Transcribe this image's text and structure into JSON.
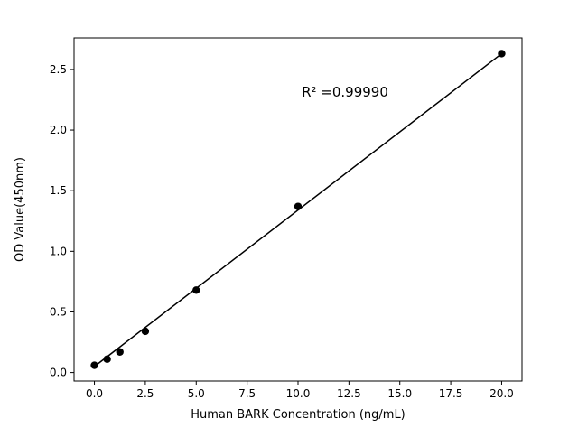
{
  "chart_data": {
    "type": "scatter",
    "title": "",
    "xlabel": "Human BARK Concentration (ng/mL)",
    "ylabel": "OD Value(450nm)",
    "annotation": "R² =0.99990",
    "x": [
      0,
      0.625,
      1.25,
      2.5,
      5,
      10,
      20
    ],
    "y": [
      0.06,
      0.11,
      0.17,
      0.34,
      0.68,
      1.37,
      2.63
    ],
    "fit_line": {
      "x": [
        0,
        20
      ],
      "y": [
        0.05,
        2.63
      ]
    },
    "xlim": [
      -1,
      21
    ],
    "ylim": [
      -0.07,
      2.76
    ],
    "xticks": [
      0,
      2.5,
      5,
      7.5,
      10,
      12.5,
      15,
      17.5,
      20
    ],
    "xtick_labels": [
      "0.0",
      "2.5",
      "5.0",
      "7.5",
      "10.0",
      "12.5",
      "15.0",
      "17.5",
      "20.0"
    ],
    "yticks": [
      0,
      0.5,
      1.0,
      1.5,
      2.0,
      2.5
    ],
    "ytick_labels": [
      "0.0",
      "0.5",
      "1.0",
      "1.5",
      "2.0",
      "2.5"
    ],
    "grid": false,
    "legend": "none",
    "marker_color": "#000000",
    "line_color": "#000000",
    "background_color": "#ffffff"
  }
}
